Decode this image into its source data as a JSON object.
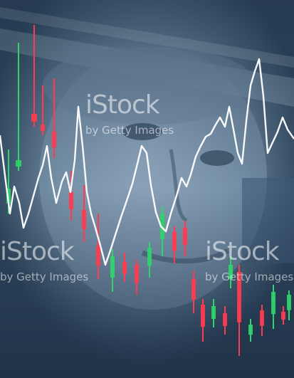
{
  "watermark": {
    "logo": "iStock",
    "credit": "by Getty Images"
  },
  "colors": {
    "background": "#3d5770",
    "banknote_tint": "#8fa9c0",
    "line": "#ffffff",
    "candle_up": "#2fd46a",
    "candle_down": "#ff3b4e"
  },
  "icons": []
}
